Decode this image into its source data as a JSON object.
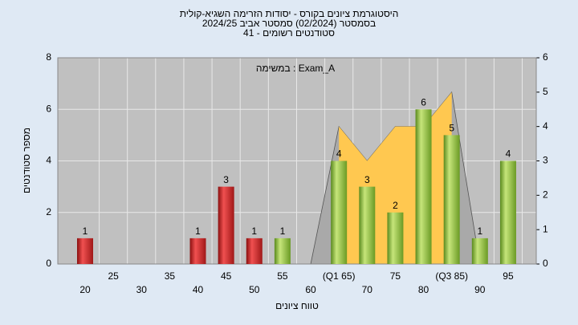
{
  "chart_data": {
    "type": "bar",
    "title_lines": [
      "היסטוגרמת ציונים בקורס - יסודות הזרימה השגיא-קולית",
      "בסמסטר  (02/2024)  סמסטר אביב 2024/25",
      "סטודנטים רשומים - 41"
    ],
    "annotation": "במשימה : Exam_A",
    "x_label": "טווח ציונים",
    "y_label": "מספר סטודנטים",
    "categories": [
      "20",
      "25",
      "30",
      "35",
      "40",
      "45",
      "50",
      "55",
      "60",
      "(Q1 65)",
      "70",
      "75",
      "80",
      "(Q3 85)",
      "90",
      "95"
    ],
    "values": [
      1,
      0,
      0,
      0,
      1,
      3,
      1,
      1,
      0,
      4,
      3,
      2,
      6,
      5,
      1,
      4
    ],
    "colors": [
      "#d42a2a",
      "#d42a2a",
      "#d42a2a",
      "#d42a2a",
      "#d42a2a",
      "#d42a2a",
      "#d42a2a",
      "#8fbf3a",
      "#8fbf3a",
      "#8fbf3a",
      "#8fbf3a",
      "#8fbf3a",
      "#8fbf3a",
      "#8fbf3a",
      "#8fbf3a",
      "#8fbf3a"
    ],
    "areas": [
      {
        "color": "#a9a9a9",
        "axis": "y2",
        "values": [
          null,
          null,
          null,
          null,
          null,
          null,
          null,
          null,
          0,
          4,
          3,
          4,
          4,
          5,
          0,
          null
        ]
      },
      {
        "color": "#ffc850",
        "axis": "y2",
        "values": [
          null,
          null,
          null,
          null,
          null,
          null,
          null,
          null,
          null,
          4,
          3,
          4,
          4,
          5,
          null,
          null
        ]
      }
    ],
    "ylim": [
      0,
      8
    ],
    "yticks": [
      0,
      2,
      4,
      6,
      8
    ],
    "y2lim": [
      0,
      6
    ],
    "y2ticks": [
      0,
      1,
      2,
      3,
      4,
      5,
      6
    ],
    "grid": true
  }
}
